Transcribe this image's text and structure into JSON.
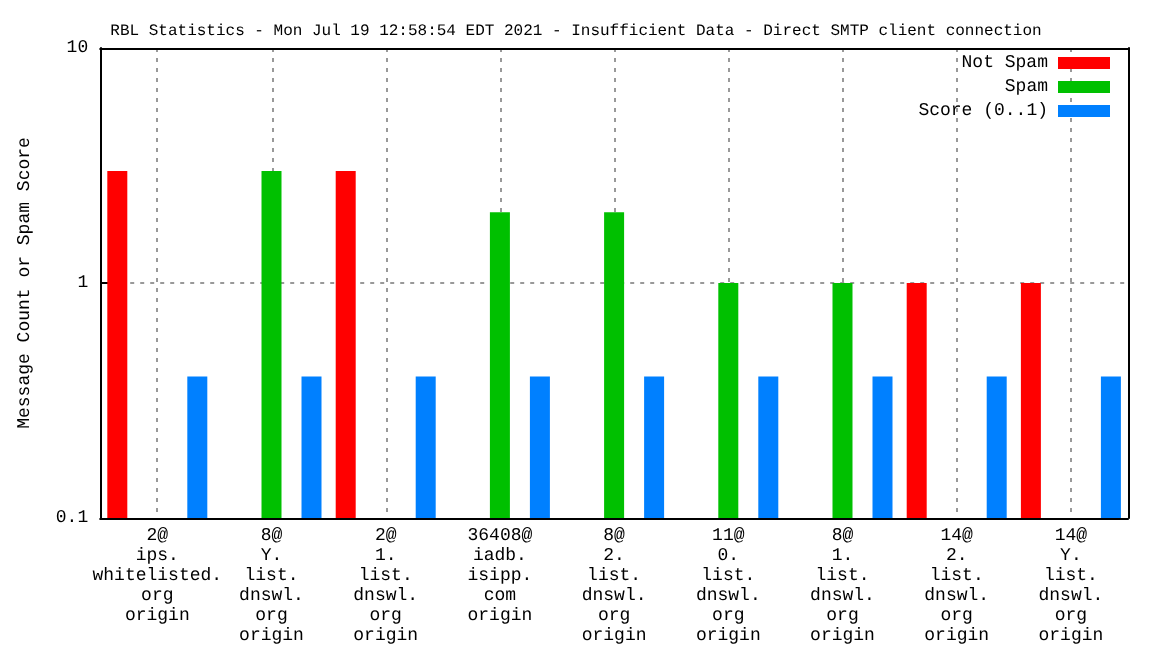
{
  "chart_data": {
    "type": "bar",
    "title": "RBL Statistics - Mon Jul 19 12:58:54 EDT 2021 - Insufficient Data - Direct SMTP client connection",
    "ylabel": "Message Count or Spam Score",
    "categories": [
      "2@\nips.\nwhitelisted.\norg\norigin",
      "8@\nY.\nlist.\ndnswl.\norg\norigin",
      "2@\n1.\nlist.\ndnswl.\norg\norigin",
      "36408@\niadb.\nisipp.\ncom\norigin",
      "8@\n2.\nlist.\ndnswl.\norg\norigin",
      "11@\n0.\nlist.\ndnswl.\norg\norigin",
      "8@\n1.\nlist.\ndnswl.\norg\norigin",
      "14@\n2.\nlist.\ndnswl.\norg\norigin",
      "14@\nY.\nlist.\ndnswl.\norg\norigin"
    ],
    "series": [
      {
        "name": "Not Spam",
        "color": "#ff0000",
        "values": [
          3,
          null,
          3,
          null,
          null,
          null,
          null,
          1,
          1
        ]
      },
      {
        "name": "Spam",
        "color": "#00c000",
        "values": [
          null,
          3,
          null,
          2,
          2,
          1,
          1,
          null,
          null
        ]
      },
      {
        "name": "Score (0..1)",
        "color": "#0080ff",
        "values": [
          0.4,
          0.4,
          0.4,
          0.4,
          0.4,
          0.4,
          0.4,
          0.4,
          0.4
        ]
      }
    ],
    "ylim": [
      0.1,
      10
    ],
    "yticks": [
      0.1,
      1,
      10
    ],
    "log": true,
    "grid": true,
    "legend": "top right"
  }
}
